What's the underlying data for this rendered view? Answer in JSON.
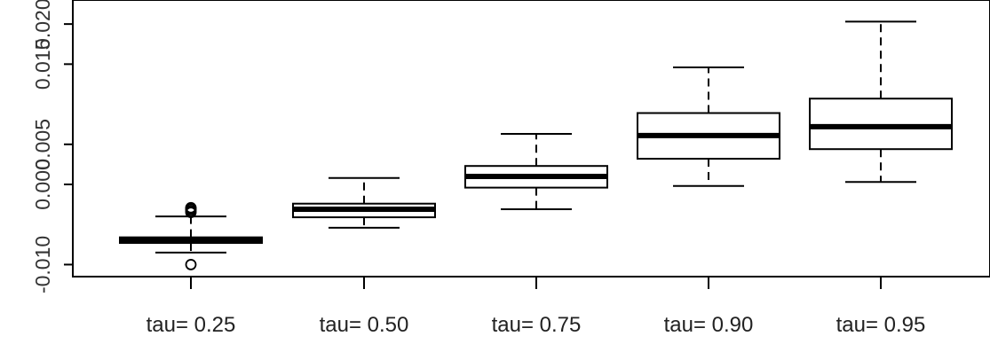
{
  "chart_data": {
    "type": "boxplot",
    "title": "",
    "xlabel": "",
    "ylabel": "",
    "ylim": [
      -0.0115,
      0.023
    ],
    "y_ticks": [
      {
        "value": -0.01,
        "label": "-0.010"
      },
      {
        "value": 0.0,
        "label": "0.000"
      },
      {
        "value": 0.005,
        "label": "0.005"
      },
      {
        "value": 0.015,
        "label": "0.015"
      },
      {
        "value": 0.02,
        "label": "0.020"
      }
    ],
    "categories": [
      "tau= 0.25",
      "tau= 0.50",
      "tau= 0.75",
      "tau= 0.90",
      "tau= 0.95"
    ],
    "boxes": [
      {
        "name": "tau= 0.25",
        "whisker_low": -0.0085,
        "q1": -0.0073,
        "median": -0.007,
        "q3": -0.0066,
        "whisker_high": -0.004,
        "outliers": [
          -0.01,
          -0.0035,
          -0.0033,
          -0.0031,
          -0.003,
          -0.0029
        ]
      },
      {
        "name": "tau= 0.50",
        "whisker_low": -0.0054,
        "q1": -0.0041,
        "median": -0.0031,
        "q3": -0.0024,
        "whisker_high": 0.0008,
        "outliers": []
      },
      {
        "name": "tau= 0.75",
        "whisker_low": -0.0031,
        "q1": -0.0004,
        "median": 0.001,
        "q3": 0.0023,
        "whisker_high": 0.0063,
        "outliers": []
      },
      {
        "name": "tau= 0.90",
        "whisker_low": -0.0002,
        "q1": 0.0032,
        "median": 0.0061,
        "q3": 0.0089,
        "whisker_high": 0.0146,
        "outliers": []
      },
      {
        "name": "tau= 0.95",
        "whisker_low": 0.0003,
        "q1": 0.0044,
        "median": 0.0072,
        "q3": 0.0107,
        "whisker_high": 0.0203,
        "outliers": []
      }
    ],
    "grid": false,
    "legend": "none"
  }
}
